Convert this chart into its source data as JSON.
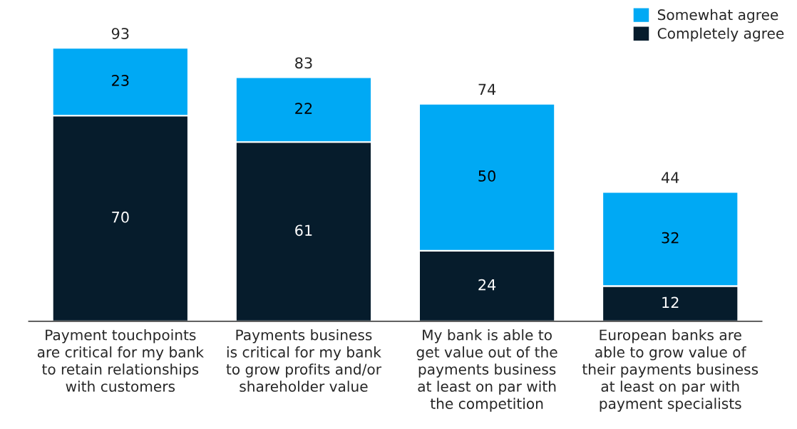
{
  "chart_data": {
    "type": "bar",
    "stacked": true,
    "data_labels": true,
    "legend": "top right",
    "grid": false,
    "categories": [
      "Payment touchpoints\nare critical for my bank\nto retain relationships\nwith customers",
      "Payments business\nis critical for my bank\nto grow profits and/or\nshareholder value",
      "My bank is able to\nget value out of the\npayments business\nat least on par with\nthe competition",
      "European banks are\nable to grow value of\ntheir payments business\nat least on par with\npayment specialists"
    ],
    "series": [
      {
        "name": "Completely agree",
        "color": "#061c2c",
        "values": [
          70,
          61,
          24,
          12
        ]
      },
      {
        "name": "Somewhat agree",
        "color": "#00a9f4",
        "values": [
          23,
          22,
          50,
          32
        ]
      }
    ],
    "totals": [
      "93",
      "83",
      "74",
      "44"
    ]
  }
}
